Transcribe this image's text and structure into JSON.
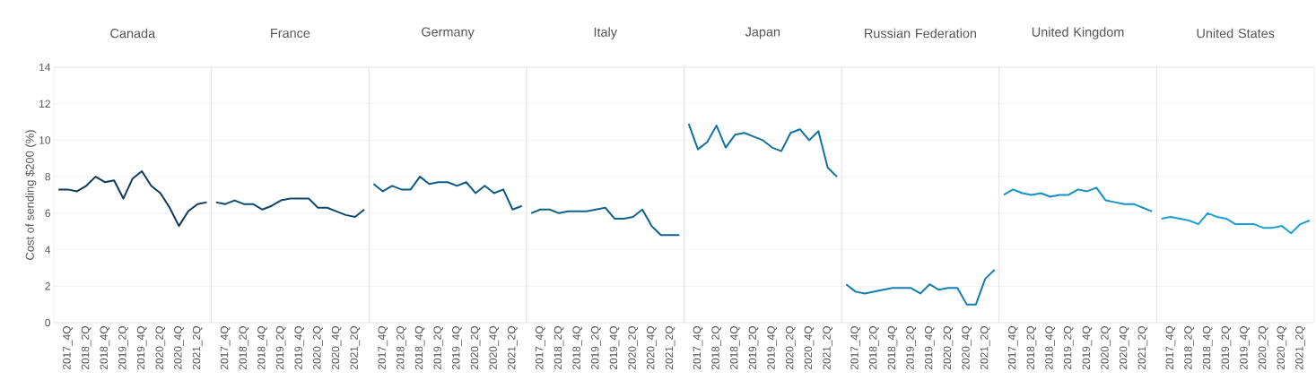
{
  "chart_data": [
    {
      "type": "line",
      "title": "Canada",
      "ylabel": "Cost of sending $200 (%)",
      "categories": [
        null,
        "2017_4Q",
        null,
        "2018_2Q",
        null,
        "2018_4Q",
        null,
        "2019_2Q",
        null,
        "2019_4Q",
        null,
        "2020_2Q",
        null,
        "2020_4Q",
        null,
        "2021_2Q",
        null
      ],
      "values": [
        7.3,
        7.3,
        7.2,
        7.5,
        8.0,
        7.7,
        7.8,
        6.8,
        7.9,
        8.3,
        7.5,
        7.1,
        6.3,
        5.3,
        6.1,
        6.5,
        6.6
      ],
      "color": "#0e3a5c",
      "ylim": [
        0,
        14
      ],
      "yticks": [
        0,
        2,
        4,
        6,
        8,
        10,
        12,
        14
      ],
      "grid": "y"
    },
    {
      "type": "line",
      "title": "France",
      "categories": [
        null,
        "2017_4Q",
        null,
        "2018_2Q",
        null,
        "2018_4Q",
        null,
        "2019_2Q",
        null,
        "2019_4Q",
        null,
        "2020_2Q",
        null,
        "2020_4Q",
        null,
        "2021_2Q",
        null
      ],
      "values": [
        6.6,
        6.5,
        6.7,
        6.5,
        6.5,
        6.2,
        6.4,
        6.7,
        6.8,
        6.8,
        6.8,
        6.3,
        6.3,
        6.1,
        5.9,
        5.8,
        6.2
      ],
      "color": "#0f4a6e",
      "ylim": [
        0,
        14
      ],
      "yticks": [
        0,
        2,
        4,
        6,
        8,
        10,
        12,
        14
      ],
      "grid": "y",
      "tick_labels": "x"
    },
    {
      "type": "line",
      "title": "Germany",
      "categories": [
        null,
        "2017_4Q",
        null,
        "2018_2Q",
        null,
        "2018_4Q",
        null,
        "2019_2Q",
        null,
        "2019_4Q",
        null,
        "2020_2Q",
        null,
        "2020_4Q",
        null,
        "2021_2Q",
        null
      ],
      "values": [
        7.6,
        7.2,
        7.5,
        7.3,
        7.3,
        8.0,
        7.6,
        7.7,
        7.7,
        7.5,
        7.7,
        7.1,
        7.5,
        7.1,
        7.3,
        6.2,
        6.4
      ],
      "color": "#0d5a84",
      "ylim": [
        0,
        14
      ],
      "yticks": [
        0,
        2,
        4,
        6,
        8,
        10,
        12,
        14
      ],
      "grid": "y",
      "tick_labels": "x"
    },
    {
      "type": "line",
      "title": "Italy",
      "categories": [
        null,
        "2017_4Q",
        null,
        "2018_2Q",
        null,
        "2018_4Q",
        null,
        "2019_2Q",
        null,
        "2019_4Q",
        null,
        "2020_2Q",
        null,
        "2020_4Q",
        null,
        "2021_2Q",
        null
      ],
      "values": [
        6.0,
        6.2,
        6.2,
        6.0,
        6.1,
        6.1,
        6.1,
        6.2,
        6.3,
        5.7,
        5.7,
        5.8,
        6.2,
        5.3,
        4.8,
        4.8,
        4.8
      ],
      "color": "#10628c",
      "ylim": [
        0,
        14
      ],
      "yticks": [
        0,
        2,
        4,
        6,
        8,
        10,
        12,
        14
      ],
      "grid": "y",
      "tick_labels": "x"
    },
    {
      "type": "line",
      "title": "Japan",
      "categories": [
        null,
        "2017_4Q",
        null,
        "2018_2Q",
        null,
        "2018_4Q",
        null,
        "2019_2Q",
        null,
        "2019_4Q",
        null,
        "2020_2Q",
        null,
        "2020_4Q",
        null,
        "2021_2Q",
        null
      ],
      "values": [
        10.9,
        9.5,
        9.9,
        10.8,
        9.6,
        10.3,
        10.4,
        10.2,
        10.0,
        9.6,
        9.4,
        10.4,
        10.6,
        10.0,
        10.5,
        8.5,
        8.0
      ],
      "color": "#1172a2",
      "ylim": [
        0,
        14
      ],
      "yticks": [
        0,
        2,
        4,
        6,
        8,
        10,
        12,
        14
      ],
      "grid": "y",
      "tick_labels": "x"
    },
    {
      "type": "line",
      "title": "Russian Federation",
      "categories": [
        null,
        "2017_4Q",
        null,
        "2018_2Q",
        null,
        "2018_4Q",
        null,
        "2019_2Q",
        null,
        "2019_4Q",
        null,
        "2020_2Q",
        null,
        "2020_4Q",
        null,
        "2021_2Q",
        null
      ],
      "values": [
        2.1,
        1.7,
        1.6,
        1.7,
        1.8,
        1.9,
        1.9,
        1.9,
        1.6,
        2.1,
        1.8,
        1.9,
        1.9,
        1.0,
        1.0,
        2.4,
        2.9
      ],
      "color": "#127fae",
      "ylim": [
        0,
        14
      ],
      "yticks": [
        0,
        2,
        4,
        6,
        8,
        10,
        12,
        14
      ],
      "grid": "y",
      "tick_labels": "x"
    },
    {
      "type": "line",
      "title": "United Kingdom",
      "categories": [
        null,
        "2017_4Q",
        null,
        "2018_2Q",
        null,
        "2018_4Q",
        null,
        "2019_2Q",
        null,
        "2019_4Q",
        null,
        "2020_2Q",
        null,
        "2020_4Q",
        null,
        "2021_2Q",
        null
      ],
      "values": [
        7.0,
        7.3,
        7.1,
        7.0,
        7.1,
        6.9,
        7.0,
        7.0,
        7.3,
        7.2,
        7.4,
        6.7,
        6.6,
        6.5,
        6.5,
        6.3,
        6.1
      ],
      "color": "#1590c4",
      "ylim": [
        0,
        14
      ],
      "yticks": [
        0,
        2,
        4,
        6,
        8,
        10,
        12,
        14
      ],
      "grid": "y",
      "tick_labels": "x"
    },
    {
      "type": "line",
      "title": "United States",
      "categories": [
        null,
        "2017_4Q",
        null,
        "2018_2Q",
        null,
        "2018_4Q",
        null,
        "2019_2Q",
        null,
        "2019_4Q",
        null,
        "2020_2Q",
        null,
        "2020_4Q",
        null,
        "2021_2Q",
        null
      ],
      "values": [
        5.7,
        5.8,
        5.7,
        5.6,
        5.4,
        6.0,
        5.8,
        5.7,
        5.4,
        5.4,
        5.4,
        5.2,
        5.2,
        5.3,
        4.9,
        5.4,
        5.6
      ],
      "color": "#1a9fd4",
      "ylim": [
        0,
        14
      ],
      "yticks": [
        0,
        2,
        4,
        6,
        8,
        10,
        12,
        14
      ],
      "grid": "y",
      "tick_labels": "x"
    }
  ]
}
